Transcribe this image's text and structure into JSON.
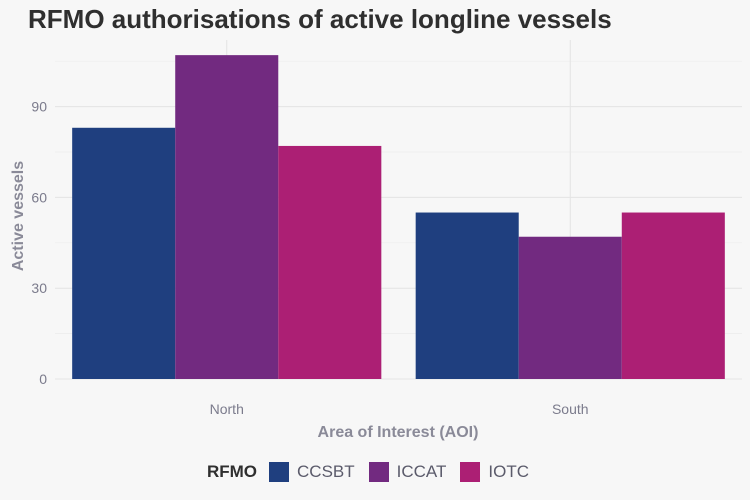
{
  "chart_data": {
    "type": "bar",
    "title": "RFMO authorisations of active longline vessels",
    "xlabel": "Area of Interest (AOI)",
    "ylabel": "Active vessels",
    "categories": [
      "North",
      "South"
    ],
    "series": [
      {
        "name": "CCSBT",
        "values": [
          83,
          55
        ],
        "color": "#1f3f7f"
      },
      {
        "name": "ICCAT",
        "values": [
          107,
          47
        ],
        "color": "#722a80"
      },
      {
        "name": "IOTC",
        "values": [
          77,
          55
        ],
        "color": "#ac1f74"
      }
    ],
    "ylim": [
      0,
      112
    ],
    "yticks": [
      0,
      30,
      60,
      90
    ],
    "grid": true,
    "legend_title": "RFMO",
    "legend_position": "bottom"
  }
}
